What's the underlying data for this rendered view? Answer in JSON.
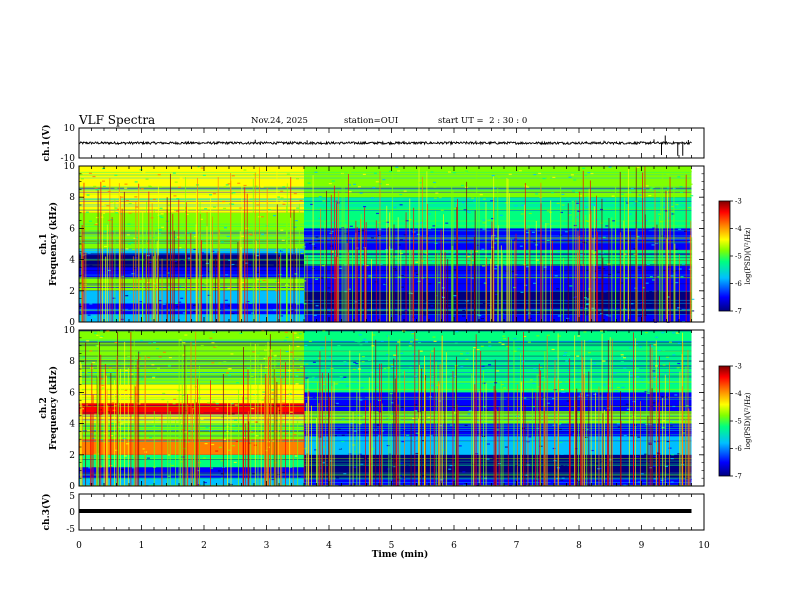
{
  "header": {
    "title": "VLF Spectra",
    "date": "Nov.24, 2025",
    "station": "station=OUI",
    "start": "start UT =  2 : 30 : 0"
  },
  "chart_data": [
    {
      "type": "line",
      "panel": "ch1-waveform",
      "ylabel": "ch.1(V)",
      "ylim": [
        -10,
        10
      ],
      "y_ticks": [
        "10",
        "-10"
      ],
      "xlim": [
        0,
        10
      ],
      "baseline": 0,
      "noise_amplitude": 0.8,
      "spikes": [
        {
          "x": 2.82,
          "y": 2.2
        },
        {
          "x": 2.9,
          "y": -1.2
        },
        {
          "x": 3.65,
          "y": 1.8
        },
        {
          "x": 5.2,
          "y": 1.4
        },
        {
          "x": 6.35,
          "y": 1.5
        },
        {
          "x": 8.4,
          "y": 1.6
        },
        {
          "x": 9.2,
          "y": 2.4
        },
        {
          "x": 9.32,
          "y": -8.0
        },
        {
          "x": 9.38,
          "y": 5.0
        },
        {
          "x": 9.58,
          "y": -8.5
        },
        {
          "x": 9.66,
          "y": -8.5
        },
        {
          "x": 9.75,
          "y": 2.0
        }
      ]
    },
    {
      "type": "heatmap",
      "panel": "ch1-spectrogram",
      "ylabel_1": "ch.1",
      "ylabel_2": "Frequency (kHz)",
      "ylim": [
        0,
        10
      ],
      "y_ticks": [
        "0",
        "2",
        "4",
        "6",
        "8",
        "10"
      ],
      "xlim": [
        0,
        10
      ],
      "transition_time": 3.6,
      "zlim": [
        -7,
        -3
      ],
      "before_transition": [
        {
          "from": 0,
          "to": 0.5,
          "level": -6.0
        },
        {
          "from": 0.5,
          "to": 1.2,
          "level": -6.4
        },
        {
          "from": 1.2,
          "to": 2.0,
          "level": -6.1
        },
        {
          "from": 2.0,
          "to": 2.8,
          "level": -5.0
        },
        {
          "from": 2.8,
          "to": 3.5,
          "level": -6.2
        },
        {
          "from": 3.5,
          "to": 4.3,
          "level": -6.7
        },
        {
          "from": 4.3,
          "to": 4.7,
          "level": -5.8
        },
        {
          "from": 4.7,
          "to": 5.2,
          "level": -4.9
        },
        {
          "from": 5.2,
          "to": 7.0,
          "level": -5.0
        },
        {
          "from": 7.0,
          "to": 10.0,
          "level": -4.7
        }
      ],
      "after_transition": [
        {
          "from": 0,
          "to": 0.5,
          "level": -6.5
        },
        {
          "from": 0.5,
          "to": 2.0,
          "level": -6.6
        },
        {
          "from": 2.0,
          "to": 3.0,
          "level": -6.2
        },
        {
          "from": 3.0,
          "to": 3.6,
          "level": -6.4
        },
        {
          "from": 3.6,
          "to": 4.6,
          "level": -5.4
        },
        {
          "from": 4.6,
          "to": 6.0,
          "level": -6.3
        },
        {
          "from": 6.0,
          "to": 8.0,
          "level": -5.6
        },
        {
          "from": 8.0,
          "to": 10.0,
          "level": -5.2
        }
      ]
    },
    {
      "type": "heatmap",
      "panel": "ch2-spectrogram",
      "ylabel_1": "ch.2",
      "ylabel_2": "Frequency (kHz)",
      "ylim": [
        0,
        10
      ],
      "y_ticks": [
        "0",
        "2",
        "4",
        "6",
        "8",
        "10"
      ],
      "xlim": [
        0,
        10
      ],
      "transition_time": 3.6,
      "zlim": [
        -7,
        -3
      ],
      "before_transition": [
        {
          "from": 0,
          "to": 0.5,
          "level": -6.0
        },
        {
          "from": 0.5,
          "to": 1.2,
          "level": -6.3
        },
        {
          "from": 1.2,
          "to": 2.0,
          "level": -5.4
        },
        {
          "from": 2.0,
          "to": 3.0,
          "level": -4.3
        },
        {
          "from": 3.0,
          "to": 4.0,
          "level": -5.0
        },
        {
          "from": 4.0,
          "to": 4.6,
          "level": -4.6
        },
        {
          "from": 4.6,
          "to": 5.3,
          "level": -3.8
        },
        {
          "from": 5.3,
          "to": 6.5,
          "level": -4.6
        },
        {
          "from": 6.5,
          "to": 10.0,
          "level": -4.9
        }
      ],
      "after_transition": [
        {
          "from": 0,
          "to": 0.5,
          "level": -6.5
        },
        {
          "from": 0.5,
          "to": 2.0,
          "level": -6.6
        },
        {
          "from": 2.0,
          "to": 3.2,
          "level": -6.0
        },
        {
          "from": 3.2,
          "to": 4.0,
          "level": -6.2
        },
        {
          "from": 4.0,
          "to": 4.8,
          "level": -5.2
        },
        {
          "from": 4.8,
          "to": 6.0,
          "level": -6.2
        },
        {
          "from": 6.0,
          "to": 8.0,
          "level": -5.5
        },
        {
          "from": 8.0,
          "to": 10.0,
          "level": -5.3
        }
      ]
    },
    {
      "type": "line",
      "panel": "ch3-waveform",
      "ylabel": "ch.3(V)",
      "ylim": [
        -5,
        5
      ],
      "y_ticks": [
        "5",
        "0",
        "-5"
      ],
      "xlim": [
        0,
        10
      ],
      "baseline": 0,
      "xlabel": "Time (min)",
      "x_ticks": [
        "0",
        "1",
        "2",
        "3",
        "4",
        "5",
        "6",
        "7",
        "8",
        "9",
        "10"
      ]
    }
  ],
  "colorbars": [
    {
      "panel": "ch1",
      "label": "log(PSD)(V²/Hz)",
      "ticks": [
        "-3",
        "-4",
        "-5",
        "-6",
        "-7"
      ]
    },
    {
      "panel": "ch2",
      "label": "log(PSD)(V²/Hz)",
      "ticks": [
        "-3",
        "-4",
        "-5",
        "-6",
        "-7"
      ]
    }
  ],
  "colors": {
    "scale": [
      "#00007f",
      "#0000ff",
      "#00bfff",
      "#00ff7f",
      "#7fff00",
      "#ffff00",
      "#ff7f00",
      "#ff0000",
      "#7f0000"
    ]
  }
}
